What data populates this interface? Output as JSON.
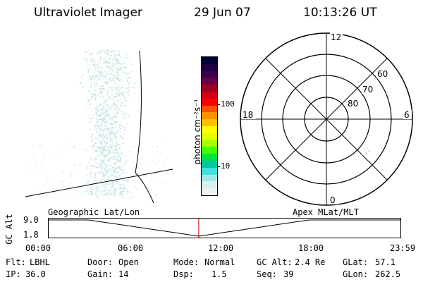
{
  "header": {
    "instrument": "Ultraviolet Imager",
    "date": "29 Jun 07",
    "time": "10:13:26 UT"
  },
  "colorbar": {
    "label": "photon cm⁻²s⁻¹",
    "tick_100": "100",
    "tick_10": "10",
    "colors": [
      "#000033",
      "#1a0040",
      "#3a0050",
      "#6a0040",
      "#a00020",
      "#d00010",
      "#ff0000",
      "#ff5000",
      "#ff9000",
      "#ffc000",
      "#ffff00",
      "#e0ff00",
      "#a0ff00",
      "#40ff00",
      "#00e040",
      "#00c8a0",
      "#40e0e0",
      "#a0e8e8",
      "#d8f0f0",
      "#f0f0f0"
    ]
  },
  "polar": {
    "mlt_12": "12",
    "mlt_18": "18",
    "mlt_6": "6",
    "mlt_0": "0",
    "lat_60": "60",
    "lat_70": "70",
    "lat_80": "80"
  },
  "timeline": {
    "left_label": "Geographic Lat/Lon",
    "right_label": "Apex MLat/MLT",
    "axis_label": "GC Alt",
    "y_top": "9.0",
    "y_bottom": "1.8",
    "ticks": [
      "00:00",
      "06:00",
      "12:00",
      "18:00",
      "23:59"
    ],
    "current_fraction": 0.4259,
    "marker_color": "#cc0000"
  },
  "info": {
    "flt_label": "Flt:",
    "flt_value": "LBHL",
    "door_label": "Door:",
    "door_value": "Open",
    "mode_label": "Mode:",
    "mode_value": "Normal",
    "gcalt_label": "GC Alt:",
    "gcalt_value": "2.4 Re",
    "glat_label": "GLat:",
    "glat_value": "57.1",
    "ip_label": "IP:",
    "ip_value": "36.0",
    "gain_label": "Gain:",
    "gain_value": "14",
    "dsp_label": "Dsp:",
    "dsp_value": "1.5",
    "seq_label": "Seq:",
    "seq_value": "39",
    "glon_label": "GLon:",
    "glon_value": "262.5"
  }
}
